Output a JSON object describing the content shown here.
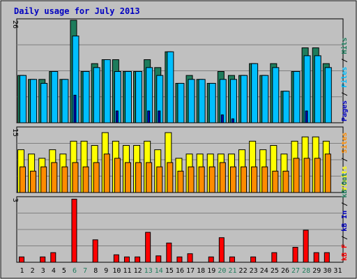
{
  "chart_data": {
    "type": "bar",
    "title": "Daily usage for July 2013",
    "categories": [
      "1",
      "2",
      "3",
      "4",
      "5",
      "6",
      "7",
      "8",
      "9",
      "10",
      "11",
      "12",
      "13",
      "14",
      "15",
      "16",
      "17",
      "18",
      "19",
      "20",
      "21",
      "22",
      "23",
      "24",
      "25",
      "26",
      "27",
      "28",
      "29",
      "30",
      "31"
    ],
    "weekend_days": [
      "6",
      "7",
      "13",
      "14",
      "20",
      "21",
      "27",
      "28"
    ],
    "panels": [
      {
        "id": "top",
        "ymax_label": "26",
        "ymax": 26,
        "label_parts": [
          "Pages",
          "Files",
          "Hits"
        ],
        "series": [
          {
            "name": "Hits",
            "color": "#1e7c5c",
            "values": [
              12,
              11,
              11,
              13,
              11,
              26,
              13,
              15,
              16,
              16,
              13,
              13,
              16,
              14,
              18,
              10,
              12,
              11,
              10,
              13,
              12,
              12,
              15,
              12,
              15,
              8,
              13,
              19,
              19,
              15
            ]
          },
          {
            "name": "Files",
            "color": "#00bfff",
            "values": [
              12,
              11,
              10,
              13,
              11,
              22,
              13,
              14,
              16,
              13,
              13,
              13,
              14,
              12,
              18,
              10,
              11,
              11,
              10,
              11,
              11,
              12,
              15,
              12,
              14,
              8,
              13,
              17,
              17,
              14
            ]
          },
          {
            "name": "Pages",
            "color": "#0000c0",
            "values": [
              0,
              0,
              0,
              0,
              0,
              7,
              0,
              0,
              0,
              3,
              0,
              0,
              3,
              3,
              0,
              0,
              0,
              0,
              0,
              2,
              1,
              0,
              0,
              0,
              0,
              0,
              0,
              3,
              0,
              0
            ]
          }
        ]
      },
      {
        "id": "middle",
        "ymax_label": "15",
        "ymax": 15,
        "label_parts": [
          "Visits",
          "Sites"
        ],
        "series": [
          {
            "name": "Visits",
            "color": "#ffff00",
            "values": [
              10,
              9,
              8,
              10,
              9,
              12,
              12,
              11,
              14,
              12,
              11,
              11,
              12,
              10,
              14,
              8,
              9,
              9,
              9,
              9,
              9,
              10,
              12,
              10,
              11,
              9,
              12,
              13,
              13,
              12
            ]
          },
          {
            "name": "Sites",
            "color": "#ff8c00",
            "values": [
              6,
              5,
              6,
              7,
              6,
              7,
              6,
              7,
              9,
              8,
              7,
              7,
              7,
              6,
              7,
              5,
              6,
              6,
              6,
              7,
              6,
              6,
              6,
              6,
              5,
              5,
              8,
              8,
              8,
              9
            ]
          }
        ]
      },
      {
        "id": "bottom",
        "ymax_label": "3",
        "ymax": 3,
        "label_parts": [
          "kB F",
          "kB In",
          "kB Out"
        ],
        "series": [
          {
            "name": "kB F",
            "color": "#ff0000",
            "values": [
              0.25,
              0,
              0.25,
              0.45,
              0,
              2.95,
              0,
              1.05,
              0,
              0.35,
              0.25,
              0.25,
              1.4,
              0.3,
              0.9,
              0.25,
              0.4,
              0,
              0.25,
              1.15,
              0.25,
              0,
              0.25,
              0,
              0.45,
              0,
              0.7,
              1.5,
              0.45,
              0.45
            ]
          }
        ]
      }
    ],
    "grid": true
  }
}
